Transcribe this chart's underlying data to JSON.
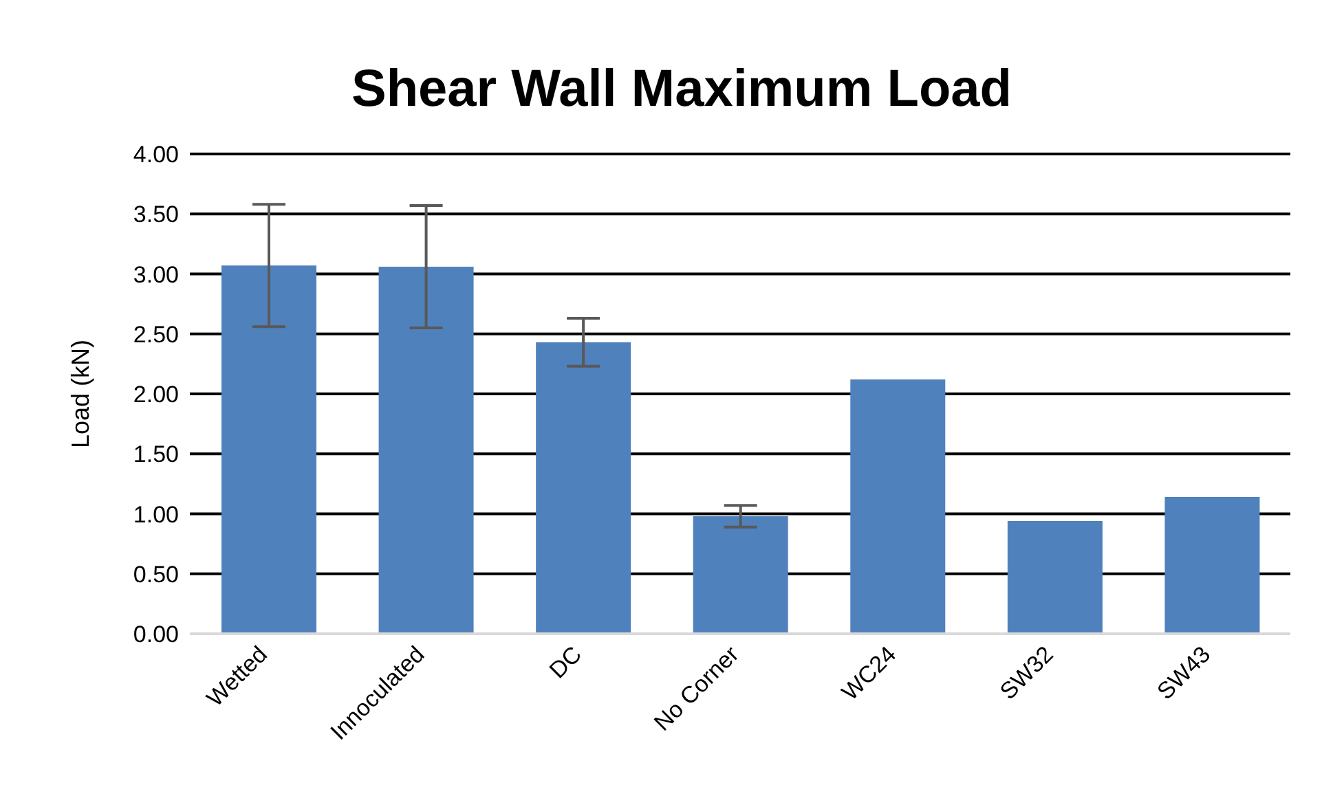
{
  "chart_data": {
    "type": "bar",
    "title": "Shear Wall Maximum Load",
    "ylabel": "Load (kN)",
    "categories": [
      "Wetted",
      "Innoculated",
      "DC",
      "No Corner",
      "WC24",
      "SW32",
      "SW43"
    ],
    "values": [
      3.07,
      3.06,
      2.43,
      0.98,
      2.12,
      0.94,
      1.14
    ],
    "errors": [
      0.51,
      0.51,
      0.2,
      0.09,
      null,
      null,
      null
    ],
    "color": "#4f81bd",
    "ylim": [
      0,
      4
    ],
    "yticks": [
      {
        "value": 0,
        "label": "0.00"
      },
      {
        "value": 0.5,
        "label": "0.50"
      },
      {
        "value": 1,
        "label": "1.00"
      },
      {
        "value": 1.5,
        "label": "1.50"
      },
      {
        "value": 2,
        "label": "2.00"
      },
      {
        "value": 2.5,
        "label": "2.50"
      },
      {
        "value": 3,
        "label": "3.00"
      },
      {
        "value": 3.5,
        "label": "3.50"
      },
      {
        "value": 4,
        "label": "4.00"
      }
    ],
    "grid": "y",
    "legend": false
  }
}
